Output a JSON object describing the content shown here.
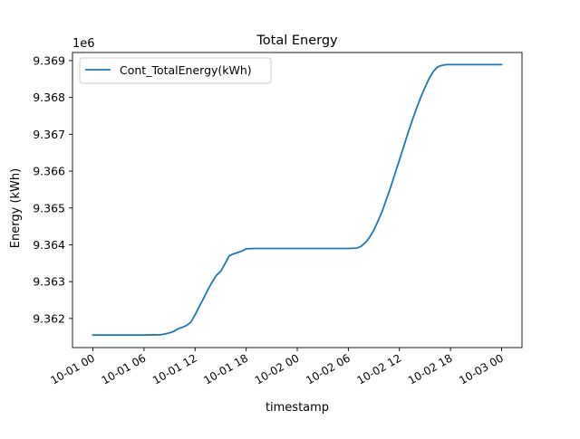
{
  "chart_data": {
    "type": "line",
    "title": "Total Energy",
    "xlabel": "timestamp",
    "ylabel": "Energy (kWh)",
    "y_offset_label": "1e6",
    "y_scale_factor": 1000000,
    "x_unit": "hours since 2024-10-01 00:00",
    "xlim": [
      -2.4,
      50.4
    ],
    "ylim": [
      9361210,
      9369220
    ],
    "x_ticks": [
      {
        "x": 0,
        "label": "10-01 00"
      },
      {
        "x": 6,
        "label": "10-01 06"
      },
      {
        "x": 12,
        "label": "10-01 12"
      },
      {
        "x": 18,
        "label": "10-01 18"
      },
      {
        "x": 24,
        "label": "10-02 00"
      },
      {
        "x": 30,
        "label": "10-02 06"
      },
      {
        "x": 36,
        "label": "10-02 12"
      },
      {
        "x": 42,
        "label": "10-02 18"
      },
      {
        "x": 48,
        "label": "10-03 00"
      }
    ],
    "y_ticks": [
      {
        "y": 9362000,
        "label": "9.362"
      },
      {
        "y": 9363000,
        "label": "9.363"
      },
      {
        "y": 9364000,
        "label": "9.364"
      },
      {
        "y": 9365000,
        "label": "9.365"
      },
      {
        "y": 9366000,
        "label": "9.366"
      },
      {
        "y": 9367000,
        "label": "9.367"
      },
      {
        "y": 9368000,
        "label": "9.368"
      },
      {
        "y": 9369000,
        "label": "9.369"
      }
    ],
    "legend": {
      "placement": "upper-left"
    },
    "grid": false,
    "series": [
      {
        "name": "Cont_TotalEnergy(kWh)",
        "color": "#1f77b4",
        "x": [
          0,
          2,
          4,
          6,
          8,
          8.5,
          9,
          9.5,
          10,
          10.5,
          11,
          11.5,
          12,
          12.5,
          13,
          13.5,
          14,
          14.5,
          15,
          15.5,
          16,
          16.5,
          17,
          17.5,
          18,
          19,
          20,
          22,
          24,
          26,
          28,
          30,
          31,
          31.5,
          32,
          32.5,
          33,
          33.5,
          34,
          34.5,
          35,
          35.5,
          36,
          36.5,
          37,
          37.5,
          38,
          38.5,
          39,
          39.5,
          40,
          40.5,
          41,
          41.5,
          42,
          43,
          44,
          45,
          46,
          47,
          48
        ],
        "y": [
          9361550,
          9361550,
          9361550,
          9361550,
          9361560,
          9361580,
          9361610,
          9361650,
          9361720,
          9361760,
          9361810,
          9361900,
          9362100,
          9362330,
          9362550,
          9362780,
          9362990,
          9363170,
          9363280,
          9363480,
          9363700,
          9363750,
          9363790,
          9363830,
          9363890,
          9363900,
          9363900,
          9363900,
          9363900,
          9363900,
          9363900,
          9363900,
          9363910,
          9363960,
          9364060,
          9364200,
          9364400,
          9364650,
          9364920,
          9365250,
          9365580,
          9365940,
          9366300,
          9366660,
          9367030,
          9367370,
          9367700,
          9368000,
          9368270,
          9368520,
          9368710,
          9368830,
          9368870,
          9368890,
          9368890,
          9368890,
          9368890,
          9368890,
          9368890,
          9368890,
          9368890
        ]
      }
    ]
  }
}
